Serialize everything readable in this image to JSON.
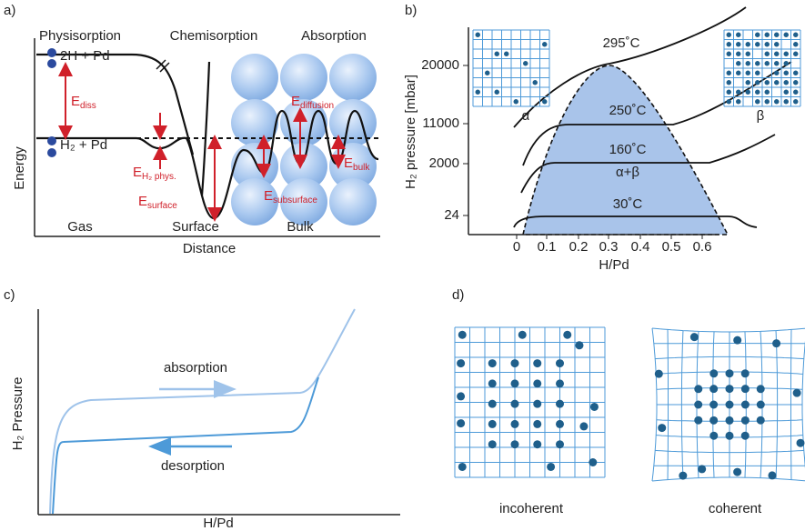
{
  "a": {
    "label": "a)",
    "headings": [
      "Physisorption",
      "Chemisorption",
      "Absorption"
    ],
    "states": [
      "2H + Pd",
      "H₂ + Pd"
    ],
    "energies": [
      {
        "main": "E",
        "sub": "diss"
      },
      {
        "main": "E",
        "sub": "H₂ phys."
      },
      {
        "main": "E",
        "sub": "surface"
      },
      {
        "main": "E",
        "sub": "subsurface"
      },
      {
        "main": "E",
        "sub": "diffusion"
      },
      {
        "main": "E",
        "sub": "bulk"
      }
    ],
    "regions": [
      "Gas",
      "Surface",
      "Bulk"
    ],
    "y_label": "Energy",
    "x_label": "Distance"
  },
  "b": {
    "label": "b)",
    "y_label": "H₂ pressure [mbar]",
    "x_label": "H/Pd",
    "y_ticks": [
      "20000",
      "11000",
      "2000",
      "24"
    ],
    "x_ticks": [
      "0",
      "0.1",
      "0.2",
      "0.3",
      "0.4",
      "0.5",
      "0.6"
    ],
    "isotherms": [
      "295˚C",
      "250˚C",
      "160˚C",
      "30˚C"
    ],
    "phases": [
      "α",
      "β",
      "α+β"
    ]
  },
  "c": {
    "label": "c)",
    "y_label": "H₂ Pressure",
    "x_label": "H/Pd",
    "branches": [
      "absorption",
      "desorption"
    ]
  },
  "d": {
    "label": "d)",
    "captions": [
      "incoherent",
      "coherent"
    ]
  }
}
